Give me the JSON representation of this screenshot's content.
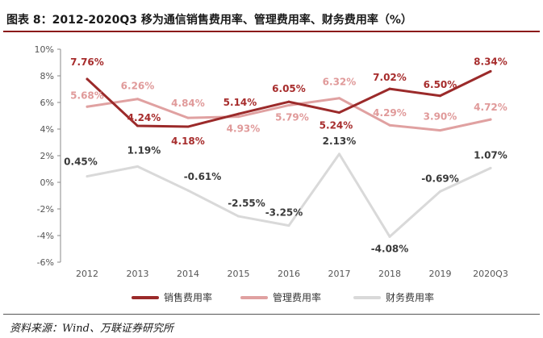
{
  "title": "图表 8：2012-2020Q3 移为通信销售费用率、管理费用率、财务费用率（%）",
  "source": "资料来源：Wind、万联证券研究所",
  "colors": {
    "series1": "#9b2a2a",
    "series2": "#e0a1a1",
    "series3": "#d9d9d9",
    "label1": "#a72d2d",
    "label2": "#e09a9a",
    "label3": "#3a3a3a"
  },
  "chart_data": {
    "type": "line",
    "categories": [
      "2012",
      "2013",
      "2014",
      "2015",
      "2016",
      "2017",
      "2018",
      "2019",
      "2020Q3"
    ],
    "series": [
      {
        "name": "销售费用率",
        "values": [
          7.76,
          4.24,
          4.18,
          5.14,
          6.05,
          5.24,
          7.02,
          6.5,
          8.34
        ],
        "labels": [
          "7.76%",
          "4.24%",
          "4.18%",
          "5.14%",
          "6.05%",
          "5.24%",
          "7.02%",
          "6.50%",
          "8.34%"
        ]
      },
      {
        "name": "管理费用率",
        "values": [
          5.68,
          6.26,
          4.84,
          4.93,
          5.79,
          6.32,
          4.29,
          3.9,
          4.72
        ],
        "labels": [
          "5.68%",
          "6.26%",
          "4.84%",
          "4.93%",
          "5.79%",
          "6.32%",
          "4.29%",
          "3.90%",
          "4.72%"
        ]
      },
      {
        "name": "财务费用率",
        "values": [
          0.45,
          1.19,
          -0.61,
          -2.55,
          -3.25,
          2.13,
          -4.08,
          -0.69,
          1.07
        ],
        "labels": [
          "0.45%",
          "1.19%",
          "-0.61%",
          "-2.55%",
          "-3.25%",
          "2.13%",
          "-4.08%",
          "-0.69%",
          "1.07%"
        ]
      }
    ],
    "ylim": [
      -6,
      10
    ],
    "yticks": [
      -6,
      -4,
      -2,
      0,
      2,
      4,
      6,
      8,
      10
    ],
    "ytick_labels": [
      "-6%",
      "-4%",
      "-2%",
      "0%",
      "2%",
      "4%",
      "6%",
      "8%",
      "10%"
    ],
    "xlabel": "",
    "ylabel": "",
    "grid": false,
    "legend_position": "bottom"
  }
}
